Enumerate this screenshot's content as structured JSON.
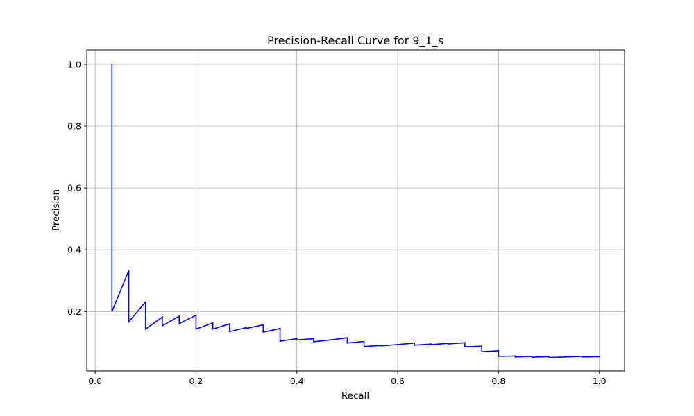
{
  "chart_data": {
    "type": "line",
    "title": "Precision-Recall Curve for 9_1_s",
    "xlabel": "Recall",
    "ylabel": "Precision",
    "xlim": [
      -0.0167,
      1.05
    ],
    "ylim": [
      0.0076,
      1.047
    ],
    "grid": true,
    "x_ticks": [
      0.0,
      0.2,
      0.4,
      0.6,
      0.8,
      1.0
    ],
    "x_tick_labels": [
      "0.0",
      "0.2",
      "0.4",
      "0.6",
      "0.8",
      "1.0"
    ],
    "y_ticks": [
      0.2,
      0.4,
      0.6,
      0.8,
      1.0
    ],
    "y_tick_labels": [
      "0.2",
      "0.4",
      "0.6",
      "0.8",
      "1.0"
    ],
    "line_color": "#0000ff",
    "grid_color": "#b0b0b0",
    "series": [
      {
        "x": [
          0.0333,
          0.0333,
          0.0667,
          0.0667,
          0.1,
          0.1,
          0.1333,
          0.1333,
          0.1667,
          0.1667,
          0.2,
          0.2,
          0.2333,
          0.2333,
          0.2667,
          0.2667,
          0.3,
          0.3,
          0.3333,
          0.3333,
          0.3667,
          0.3667,
          0.4,
          0.4,
          0.4333,
          0.4333,
          0.4667,
          0.5,
          0.5,
          0.5333,
          0.5333,
          0.5667,
          0.5667,
          0.6,
          0.6333,
          0.6333,
          0.6667,
          0.6667,
          0.7,
          0.7,
          0.7333,
          0.7333,
          0.7667,
          0.7667,
          0.8,
          0.8,
          0.8333,
          0.8333,
          0.8667,
          0.8667,
          0.9,
          0.9,
          0.9333,
          0.9667,
          0.9667,
          1.0,
          1.0
        ],
        "y": [
          1.0,
          0.2,
          0.333,
          0.167,
          0.231,
          0.143,
          0.182,
          0.154,
          0.185,
          0.161,
          0.188,
          0.143,
          0.163,
          0.143,
          0.16,
          0.135,
          0.148,
          0.145,
          0.157,
          0.133,
          0.145,
          0.104,
          0.112,
          0.108,
          0.112,
          0.102,
          0.108,
          0.115,
          0.098,
          0.103,
          0.087,
          0.09,
          0.089,
          0.093,
          0.098,
          0.091,
          0.095,
          0.093,
          0.097,
          0.095,
          0.099,
          0.086,
          0.088,
          0.07,
          0.073,
          0.055,
          0.056,
          0.053,
          0.055,
          0.052,
          0.054,
          0.051,
          0.053,
          0.055,
          0.053,
          0.054,
          0.052
        ]
      }
    ]
  }
}
